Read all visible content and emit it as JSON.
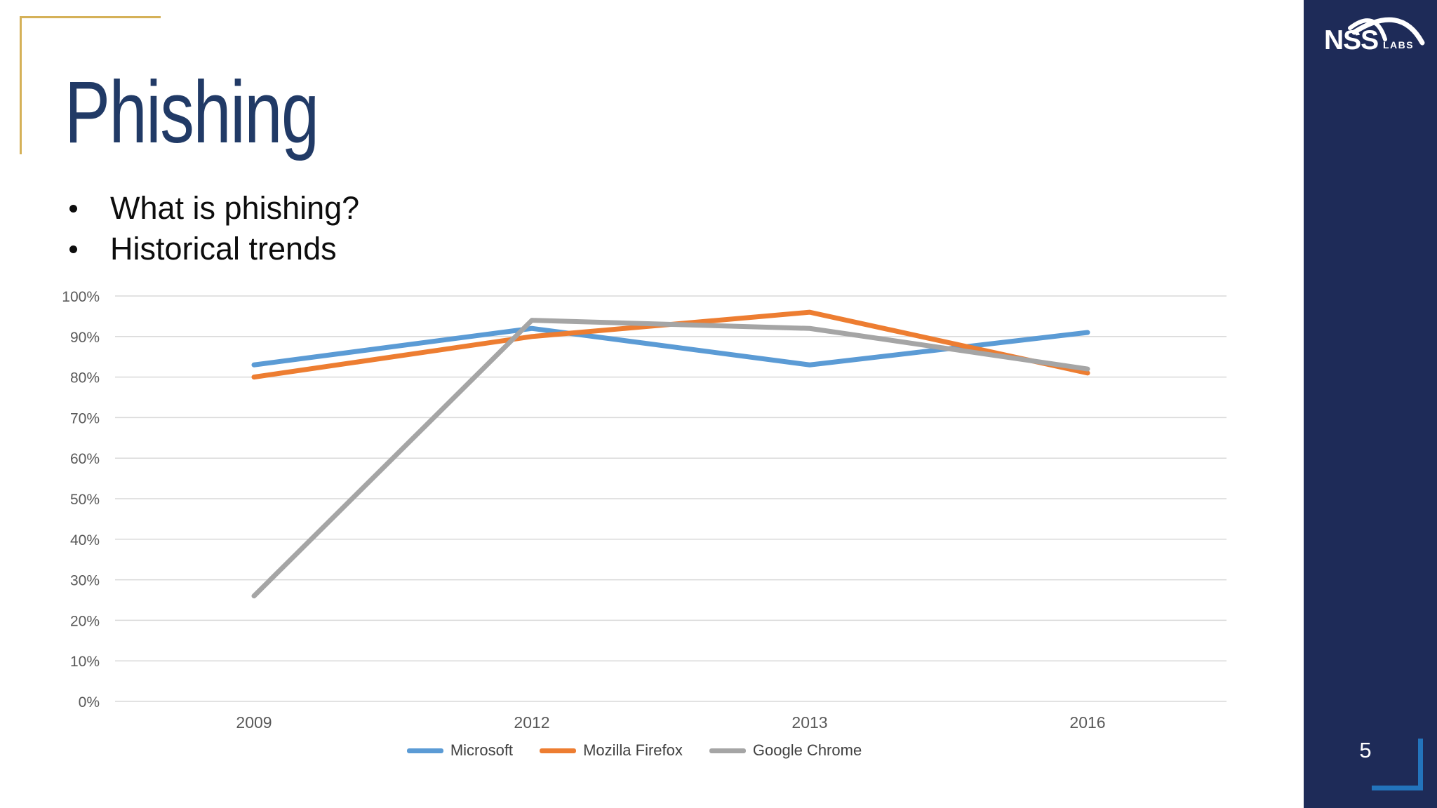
{
  "slide": {
    "title": "Phishing",
    "bullets": [
      "What is phishing?",
      "Historical trends"
    ]
  },
  "sidebar": {
    "logo_text": "NSS",
    "logo_subtext": "LABS",
    "page_number": "5"
  },
  "colors": {
    "title_navy": "#213A66",
    "sidebar_navy": "#1E2B58",
    "accent_gold": "#D5B158",
    "bracket_blue": "#2374BC",
    "gridline": "#D9D9D9",
    "axis_text": "#595959",
    "legend_text": "#404040"
  },
  "chart_data": {
    "type": "line",
    "title": "",
    "xlabel": "",
    "ylabel": "",
    "categories": [
      "2009",
      "2012",
      "2013",
      "2016"
    ],
    "series": [
      {
        "name": "Microsoft",
        "color": "#5B9BD5",
        "values": [
          83,
          92,
          83,
          91
        ]
      },
      {
        "name": "Mozilla Firefox",
        "color": "#ED7D31",
        "values": [
          80,
          90,
          96,
          81
        ]
      },
      {
        "name": "Google Chrome",
        "color": "#A5A5A5",
        "values": [
          26,
          94,
          92,
          82
        ]
      }
    ],
    "ylim": [
      0,
      100
    ],
    "y_tick_labels": [
      "0%",
      "10%",
      "20%",
      "30%",
      "40%",
      "50%",
      "60%",
      "70%",
      "80%",
      "90%",
      "100%"
    ],
    "grid": "horizontal-only",
    "legend_position": "bottom"
  }
}
